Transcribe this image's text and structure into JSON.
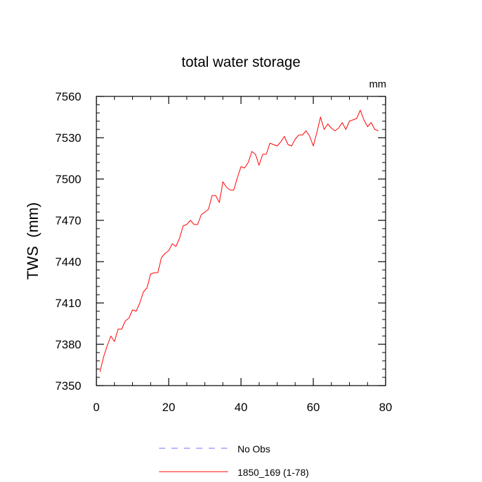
{
  "chart_data": {
    "type": "line",
    "title": "total water storage",
    "units_label": "mm",
    "xlabel": "",
    "ylabel": "TWS  (mm)",
    "xlim": [
      0,
      80
    ],
    "ylim": [
      7350,
      7560
    ],
    "x_ticks": [
      0,
      20,
      40,
      60,
      80
    ],
    "y_ticks": [
      7350,
      7380,
      7410,
      7440,
      7470,
      7500,
      7530,
      7560
    ],
    "x_tick_labels": [
      "0",
      "20",
      "40",
      "60",
      "80"
    ],
    "y_tick_labels": [
      "7350",
      "7380",
      "7410",
      "7440",
      "7470",
      "7500",
      "7530",
      "7560"
    ],
    "series": [
      {
        "name": "1850_169 (1-78)",
        "color": "#ff0000",
        "dash": "solid",
        "x": [
          1,
          2,
          3,
          4,
          5,
          6,
          7,
          8,
          9,
          10,
          11,
          12,
          13,
          14,
          15,
          16,
          17,
          18,
          19,
          20,
          21,
          22,
          23,
          24,
          25,
          26,
          27,
          28,
          29,
          30,
          31,
          32,
          33,
          34,
          35,
          36,
          37,
          38,
          39,
          40,
          41,
          42,
          43,
          44,
          45,
          46,
          47,
          48,
          49,
          50,
          51,
          52,
          53,
          54,
          55,
          56,
          57,
          58,
          59,
          60,
          61,
          62,
          63,
          64,
          65,
          66,
          67,
          68,
          69,
          70,
          71,
          72,
          73,
          74,
          75,
          76,
          77,
          78
        ],
        "values": [
          7360,
          7371,
          7379,
          7386,
          7382,
          7391,
          7391,
          7397,
          7399,
          7405,
          7404,
          7410,
          7418,
          7421,
          7431,
          7432,
          7432,
          7443,
          7446,
          7448,
          7453,
          7451,
          7457,
          7466,
          7467,
          7470,
          7467,
          7467,
          7474,
          7476,
          7478,
          7488,
          7488,
          7483,
          7498,
          7494,
          7492,
          7492,
          7501,
          7509,
          7508,
          7512,
          7520,
          7518,
          7510,
          7518,
          7518,
          7526,
          7525,
          7524,
          7527,
          7531,
          7525,
          7524,
          7529,
          7532,
          7532,
          7535,
          7531,
          7524,
          7534,
          7545,
          7536,
          7540,
          7537,
          7535,
          7537,
          7541,
          7536,
          7542,
          7543,
          7544,
          7550,
          7543,
          7538,
          7541,
          7536,
          7535
        ]
      },
      {
        "name": "No Obs",
        "color": "#6f6fff",
        "dash": "dashed",
        "x": [],
        "values": []
      }
    ],
    "legend_position": "bottom-center"
  }
}
